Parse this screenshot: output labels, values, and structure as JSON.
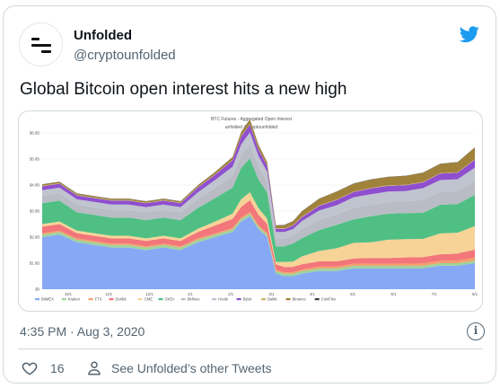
{
  "tweet": {
    "author_name": "Unfolded",
    "author_handle": "@cryptounfolded",
    "text": "Global Bitcoin open interest hits a new high",
    "timestamp": "4:35 PM · Aug 3, 2020",
    "like_count": "16",
    "see_more_label": "See Unfolded’s other Tweets",
    "info_symbol": "i"
  },
  "icons": {
    "brand": "twitter-bird-icon",
    "avatar": "unfolded-logo-icon",
    "like": "heart-icon",
    "profile": "person-icon",
    "info": "info-icon"
  },
  "colors": {
    "twitter_blue": "#1d9bf0",
    "text_secondary": "#536471",
    "border": "#cfd9de"
  },
  "chart_data": {
    "type": "area",
    "title": "BTC Futures - Aggregated Open Interest",
    "subtitle": "unfolded @cryptounfolded",
    "ylabel": "",
    "xlabel": "",
    "y_ticks": [
      "$0",
      "$1.0B",
      "$2.0B",
      "$3.0B",
      "$4.0B",
      "$5.0B",
      "$6.0B"
    ],
    "ylim": [
      0,
      6
    ],
    "x_ticks": [
      "10/1",
      "11/1",
      "12/1",
      "1/1",
      "2/1",
      "3/1",
      "4/1",
      "5/1",
      "6/1",
      "7/1",
      "8/1"
    ],
    "grid": true,
    "legend_position": "bottom",
    "series": [
      {
        "name": "BitMEX",
        "color": "#86a8f5"
      },
      {
        "name": "Kraken",
        "color": "#a0d29b"
      },
      {
        "name": "FTX",
        "color": "#f59e6b"
      },
      {
        "name": "Deribit",
        "color": "#f2767a"
      },
      {
        "name": "CME",
        "color": "#f7d397"
      },
      {
        "name": "OKEx",
        "color": "#4fbf84"
      },
      {
        "name": "Bitfinex",
        "color": "#b9bcc4"
      },
      {
        "name": "Huobi",
        "color": "#bfc4cf"
      },
      {
        "name": "Bybit",
        "color": "#8f4fcf"
      },
      {
        "name": "Bakkt",
        "color": "#c9b26a"
      },
      {
        "name": "Binance",
        "color": "#a0823a"
      },
      {
        "name": "CoinFlex",
        "color": "#3c4048"
      }
    ],
    "stack": {
      "x_positions": [
        0,
        0.04,
        0.08,
        0.12,
        0.16,
        0.2,
        0.24,
        0.28,
        0.32,
        0.36,
        0.4,
        0.44,
        0.46,
        0.48,
        0.5,
        0.52,
        0.54,
        0.56,
        0.58,
        0.6,
        0.64,
        0.68,
        0.72,
        0.76,
        0.8,
        0.84,
        0.88,
        0.92,
        0.96,
        1.0
      ],
      "layers": [
        [
          2.0,
          2.1,
          1.8,
          1.7,
          1.6,
          1.6,
          1.5,
          1.6,
          1.5,
          1.8,
          2.0,
          2.2,
          2.6,
          2.8,
          2.3,
          2.0,
          0.6,
          0.5,
          0.5,
          0.6,
          0.7,
          0.7,
          0.8,
          0.8,
          0.8,
          0.8,
          0.8,
          0.9,
          0.9,
          1.0
        ],
        [
          0.1,
          0.1,
          0.1,
          0.1,
          0.1,
          0.1,
          0.1,
          0.1,
          0.1,
          0.1,
          0.1,
          0.1,
          0.1,
          0.1,
          0.1,
          0.1,
          0.1,
          0.1,
          0.1,
          0.1,
          0.1,
          0.1,
          0.1,
          0.1,
          0.1,
          0.1,
          0.1,
          0.1,
          0.1,
          0.1
        ],
        [
          0.05,
          0.05,
          0.05,
          0.05,
          0.05,
          0.05,
          0.05,
          0.05,
          0.05,
          0.05,
          0.05,
          0.05,
          0.06,
          0.07,
          0.06,
          0.06,
          0.05,
          0.05,
          0.06,
          0.06,
          0.07,
          0.07,
          0.08,
          0.08,
          0.08,
          0.08,
          0.09,
          0.09,
          0.1,
          0.12
        ],
        [
          0.25,
          0.25,
          0.2,
          0.2,
          0.2,
          0.2,
          0.2,
          0.2,
          0.2,
          0.25,
          0.3,
          0.35,
          0.4,
          0.45,
          0.4,
          0.35,
          0.2,
          0.2,
          0.2,
          0.2,
          0.2,
          0.2,
          0.2,
          0.22,
          0.22,
          0.24,
          0.24,
          0.25,
          0.27,
          0.3
        ],
        [
          0.1,
          0.1,
          0.1,
          0.1,
          0.1,
          0.1,
          0.1,
          0.1,
          0.1,
          0.12,
          0.15,
          0.2,
          0.3,
          0.3,
          0.25,
          0.2,
          0.1,
          0.2,
          0.2,
          0.3,
          0.4,
          0.5,
          0.6,
          0.6,
          0.7,
          0.7,
          0.7,
          0.8,
          0.8,
          0.9
        ],
        [
          0.8,
          0.8,
          0.7,
          0.7,
          0.7,
          0.7,
          0.7,
          0.7,
          0.7,
          0.8,
          0.9,
          1.0,
          1.2,
          1.3,
          1.1,
          1.0,
          0.6,
          0.6,
          0.7,
          0.7,
          0.8,
          0.9,
          0.9,
          1.0,
          1.0,
          1.0,
          1.0,
          1.1,
          1.1,
          1.2
        ],
        [
          0.3,
          0.3,
          0.3,
          0.3,
          0.3,
          0.3,
          0.3,
          0.3,
          0.3,
          0.35,
          0.4,
          0.45,
          0.5,
          0.55,
          0.5,
          0.45,
          0.3,
          0.3,
          0.3,
          0.35,
          0.4,
          0.4,
          0.45,
          0.45,
          0.45,
          0.45,
          0.5,
          0.5,
          0.5,
          0.55
        ],
        [
          0.2,
          0.2,
          0.2,
          0.2,
          0.2,
          0.2,
          0.2,
          0.2,
          0.2,
          0.25,
          0.3,
          0.35,
          0.4,
          0.45,
          0.4,
          0.35,
          0.25,
          0.25,
          0.25,
          0.3,
          0.35,
          0.35,
          0.4,
          0.4,
          0.4,
          0.4,
          0.45,
          0.45,
          0.45,
          0.5
        ],
        [
          0.15,
          0.15,
          0.15,
          0.15,
          0.15,
          0.15,
          0.15,
          0.15,
          0.15,
          0.18,
          0.2,
          0.25,
          0.3,
          0.3,
          0.25,
          0.22,
          0.12,
          0.12,
          0.13,
          0.15,
          0.18,
          0.2,
          0.2,
          0.22,
          0.22,
          0.22,
          0.22,
          0.25,
          0.25,
          0.3
        ],
        [
          0.02,
          0.02,
          0.02,
          0.02,
          0.02,
          0.02,
          0.02,
          0.02,
          0.02,
          0.02,
          0.02,
          0.02,
          0.02,
          0.02,
          0.02,
          0.02,
          0.02,
          0.02,
          0.02,
          0.02,
          0.02,
          0.02,
          0.02,
          0.02,
          0.02,
          0.02,
          0.02,
          0.02,
          0.02,
          0.02
        ],
        [
          0.05,
          0.05,
          0.05,
          0.05,
          0.05,
          0.05,
          0.05,
          0.05,
          0.05,
          0.06,
          0.08,
          0.1,
          0.15,
          0.18,
          0.15,
          0.12,
          0.1,
          0.12,
          0.15,
          0.2,
          0.25,
          0.3,
          0.3,
          0.32,
          0.32,
          0.34,
          0.35,
          0.35,
          0.38,
          0.45
        ],
        [
          0.01,
          0.01,
          0.01,
          0.01,
          0.01,
          0.01,
          0.01,
          0.01,
          0.01,
          0.01,
          0.01,
          0.01,
          0.01,
          0.01,
          0.01,
          0.01,
          0.01,
          0.01,
          0.01,
          0.01,
          0.01,
          0.01,
          0.01,
          0.01,
          0.01,
          0.01,
          0.01,
          0.01,
          0.01,
          0.01
        ]
      ]
    }
  }
}
